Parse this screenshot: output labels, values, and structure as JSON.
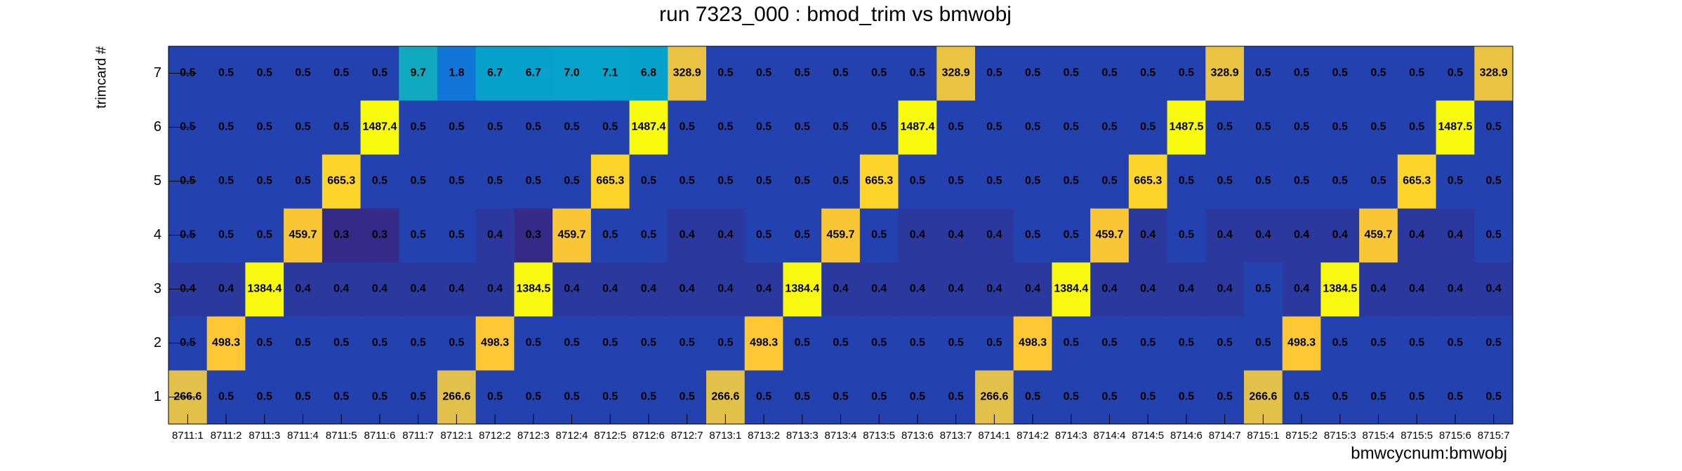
{
  "chart_data": {
    "type": "heatmap",
    "title": "run 7323_000 : bmod_trim vs bmwobj",
    "x_label": "bmwcycnum:bmwobj",
    "y_label": "trimcard #",
    "x": [
      "8711:1",
      "8711:2",
      "8711:3",
      "8711:4",
      "8711:5",
      "8711:6",
      "8711:7",
      "8712:1",
      "8712:2",
      "8712:3",
      "8712:4",
      "8712:5",
      "8712:6",
      "8712:7",
      "8713:1",
      "8713:2",
      "8713:3",
      "8713:4",
      "8713:5",
      "8713:6",
      "8713:7",
      "8714:1",
      "8714:2",
      "8714:3",
      "8714:4",
      "8714:5",
      "8714:6",
      "8714:7",
      "8715:1",
      "8715:2",
      "8715:3",
      "8715:4",
      "8715:5",
      "8715:6",
      "8715:7"
    ],
    "y": [
      1,
      2,
      3,
      4,
      5,
      6,
      7
    ],
    "ylim": [
      0.5,
      7.5
    ],
    "yticks": [
      1,
      2,
      3,
      4,
      5,
      6,
      7
    ],
    "z_log": true,
    "palette": [
      "#352a87",
      "#0f5cdd",
      "#1481d6",
      "#06a4ca",
      "#2eb7a4",
      "#87bf77",
      "#d1bb59",
      "#fec832",
      "#f9fb0e"
    ],
    "values": [
      [
        266.6,
        0.5,
        0.5,
        0.5,
        0.5,
        0.5,
        0.5,
        266.6,
        0.5,
        0.5,
        0.5,
        0.5,
        0.5,
        0.5,
        266.6,
        0.5,
        0.5,
        0.5,
        0.5,
        0.5,
        0.5,
        266.6,
        0.5,
        0.5,
        0.5,
        0.5,
        0.5,
        0.5,
        266.6,
        0.5,
        0.5,
        0.5,
        0.5,
        0.5,
        0.5
      ],
      [
        0.5,
        498.3,
        0.5,
        0.5,
        0.5,
        0.5,
        0.5,
        0.5,
        498.3,
        0.5,
        0.5,
        0.5,
        0.5,
        0.5,
        0.5,
        498.3,
        0.5,
        0.5,
        0.5,
        0.5,
        0.5,
        0.5,
        498.3,
        0.5,
        0.5,
        0.5,
        0.5,
        0.5,
        0.5,
        498.3,
        0.5,
        0.5,
        0.5,
        0.5,
        0.5
      ],
      [
        0.4,
        0.4,
        1384.4,
        0.4,
        0.4,
        0.4,
        0.4,
        0.4,
        0.4,
        1384.5,
        0.4,
        0.4,
        0.4,
        0.4,
        0.4,
        0.4,
        1384.4,
        0.4,
        0.4,
        0.4,
        0.4,
        0.4,
        0.4,
        1384.4,
        0.4,
        0.4,
        0.4,
        0.4,
        0.5,
        0.4,
        1384.5,
        0.4,
        0.4,
        0.4,
        0.4
      ],
      [
        0.5,
        0.5,
        0.5,
        459.7,
        0.3,
        0.3,
        0.5,
        0.5,
        0.4,
        0.3,
        459.7,
        0.5,
        0.5,
        0.4,
        0.4,
        0.5,
        0.5,
        459.7,
        0.5,
        0.4,
        0.4,
        0.4,
        0.5,
        0.5,
        459.7,
        0.4,
        0.5,
        0.4,
        0.4,
        0.4,
        0.4,
        459.7,
        0.4,
        0.4,
        0.5
      ],
      [
        0.5,
        0.5,
        0.5,
        0.5,
        665.3,
        0.5,
        0.5,
        0.5,
        0.5,
        0.5,
        0.5,
        665.3,
        0.5,
        0.5,
        0.5,
        0.5,
        0.5,
        0.5,
        665.3,
        0.5,
        0.5,
        0.5,
        0.5,
        0.5,
        0.5,
        665.3,
        0.5,
        0.5,
        0.5,
        0.5,
        0.5,
        0.5,
        665.3,
        0.5,
        0.5
      ],
      [
        0.5,
        0.5,
        0.5,
        0.5,
        0.5,
        1487.4,
        0.5,
        0.5,
        0.5,
        0.5,
        0.5,
        0.5,
        1487.4,
        0.5,
        0.5,
        0.5,
        0.5,
        0.5,
        0.5,
        1487.4,
        0.5,
        0.5,
        0.5,
        0.5,
        0.5,
        0.5,
        1487.5,
        0.5,
        0.5,
        0.5,
        0.5,
        0.5,
        0.5,
        1487.5,
        0.5
      ],
      [
        0.5,
        0.5,
        0.5,
        0.5,
        0.5,
        0.5,
        9.7,
        1.8,
        6.7,
        6.7,
        7.0,
        7.1,
        6.8,
        328.9,
        0.5,
        0.5,
        0.5,
        0.5,
        0.5,
        0.5,
        328.9,
        0.5,
        0.5,
        0.5,
        0.5,
        0.5,
        0.5,
        328.9,
        0.5,
        0.5,
        0.5,
        0.5,
        0.5,
        0.5,
        328.9
      ]
    ],
    "value_labels": [
      [
        "266.6",
        "0.5",
        "0.5",
        "0.5",
        "0.5",
        "0.5",
        "0.5",
        "266.6",
        "0.5",
        "0.5",
        "0.5",
        "0.5",
        "0.5",
        "0.5",
        "266.6",
        "0.5",
        "0.5",
        "0.5",
        "0.5",
        "0.5",
        "0.5",
        "266.6",
        "0.5",
        "0.5",
        "0.5",
        "0.5",
        "0.5",
        "0.5",
        "266.6",
        "0.5",
        "0.5",
        "0.5",
        "0.5",
        "0.5",
        "0.5"
      ],
      [
        "0.5",
        "498.3",
        "0.5",
        "0.5",
        "0.5",
        "0.5",
        "0.5",
        "0.5",
        "498.3",
        "0.5",
        "0.5",
        "0.5",
        "0.5",
        "0.5",
        "0.5",
        "498.3",
        "0.5",
        "0.5",
        "0.5",
        "0.5",
        "0.5",
        "0.5",
        "498.3",
        "0.5",
        "0.5",
        "0.5",
        "0.5",
        "0.5",
        "0.5",
        "498.3",
        "0.5",
        "0.5",
        "0.5",
        "0.5",
        "0.5"
      ],
      [
        "0.4",
        "0.4",
        "1384.4",
        "0.4",
        "0.4",
        "0.4",
        "0.4",
        "0.4",
        "0.4",
        "1384.5",
        "0.4",
        "0.4",
        "0.4",
        "0.4",
        "0.4",
        "0.4",
        "1384.4",
        "0.4",
        "0.4",
        "0.4",
        "0.4",
        "0.4",
        "0.4",
        "1384.4",
        "0.4",
        "0.4",
        "0.4",
        "0.4",
        "0.5",
        "0.4",
        "1384.5",
        "0.4",
        "0.4",
        "0.4",
        "0.4"
      ],
      [
        "0.5",
        "0.5",
        "0.5",
        "459.7",
        "0.3",
        "0.3",
        "0.5",
        "0.5",
        "0.4",
        "0.3",
        "459.7",
        "0.5",
        "0.5",
        "0.4",
        "0.4",
        "0.5",
        "0.5",
        "459.7",
        "0.5",
        "0.4",
        "0.4",
        "0.4",
        "0.5",
        "0.5",
        "459.7",
        "0.4",
        "0.5",
        "0.4",
        "0.4",
        "0.4",
        "0.4",
        "459.7",
        "0.4",
        "0.4",
        "0.5"
      ],
      [
        "0.5",
        "0.5",
        "0.5",
        "0.5",
        "665.3",
        "0.5",
        "0.5",
        "0.5",
        "0.5",
        "0.5",
        "0.5",
        "665.3",
        "0.5",
        "0.5",
        "0.5",
        "0.5",
        "0.5",
        "0.5",
        "665.3",
        "0.5",
        "0.5",
        "0.5",
        "0.5",
        "0.5",
        "0.5",
        "665.3",
        "0.5",
        "0.5",
        "0.5",
        "0.5",
        "0.5",
        "0.5",
        "665.3",
        "0.5",
        "0.5"
      ],
      [
        "0.5",
        "0.5",
        "0.5",
        "0.5",
        "0.5",
        "1487.4",
        "0.5",
        "0.5",
        "0.5",
        "0.5",
        "0.5",
        "0.5",
        "1487.4",
        "0.5",
        "0.5",
        "0.5",
        "0.5",
        "0.5",
        "0.5",
        "1487.4",
        "0.5",
        "0.5",
        "0.5",
        "0.5",
        "0.5",
        "0.5",
        "1487.5",
        "0.5",
        "0.5",
        "0.5",
        "0.5",
        "0.5",
        "0.5",
        "1487.5",
        "0.5"
      ],
      [
        "0.5",
        "0.5",
        "0.5",
        "0.5",
        "0.5",
        "0.5",
        "9.7",
        "1.8",
        "6.7",
        "6.7",
        "7.0",
        "7.1",
        "6.8",
        "328.9",
        "0.5",
        "0.5",
        "0.5",
        "0.5",
        "0.5",
        "0.5",
        "328.9",
        "0.5",
        "0.5",
        "0.5",
        "0.5",
        "0.5",
        "0.5",
        "328.9",
        "0.5",
        "0.5",
        "0.5",
        "0.5",
        "0.5",
        "0.5",
        "328.9"
      ]
    ]
  }
}
